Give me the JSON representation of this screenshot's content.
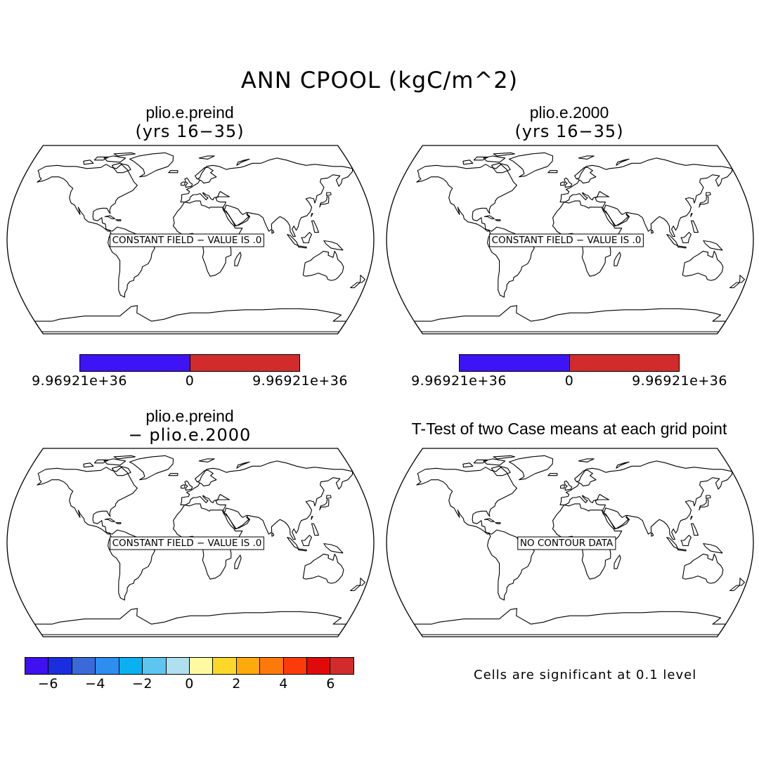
{
  "title": "ANN CPOOL (kgC/m^2)",
  "panels": [
    {
      "title": "plio.e.preind",
      "subtitle": "(yrs 16−35)",
      "box_text": "CONSTANT FIELD − VALUE IS .0"
    },
    {
      "title": "plio.e.2000",
      "subtitle": "(yrs 16−35)",
      "box_text": "CONSTANT FIELD − VALUE IS .0"
    },
    {
      "title": "plio.e.preind",
      "subtitle": "− plio.e.2000",
      "box_text": "CONSTANT FIELD − VALUE IS .0"
    },
    {
      "title": "T-Test of two Case means at each grid point",
      "subtitle": "",
      "box_text": "NO CONTOUR DATA"
    }
  ],
  "colorbar_small": {
    "colors": [
      "#3d14f5",
      "#d22b2b"
    ],
    "labels": [
      "9.96921e+36",
      "0",
      "9.96921e+36"
    ]
  },
  "colorbar_diff": {
    "colors": [
      "#3f10f0",
      "#1a2ee0",
      "#3b6ad8",
      "#2d8ef0",
      "#0ab0f0",
      "#5ec4f0",
      "#aee0f0",
      "#fffaa0",
      "#fdd82a",
      "#fdaa0a",
      "#fd7a0a",
      "#fd3a0a",
      "#e00a0a",
      "#d22b2b"
    ],
    "labels": [
      "−6",
      "−4",
      "−2",
      "0",
      "2",
      "4",
      "6"
    ]
  },
  "significance_note": "Cells are significant at 0.1 level"
}
